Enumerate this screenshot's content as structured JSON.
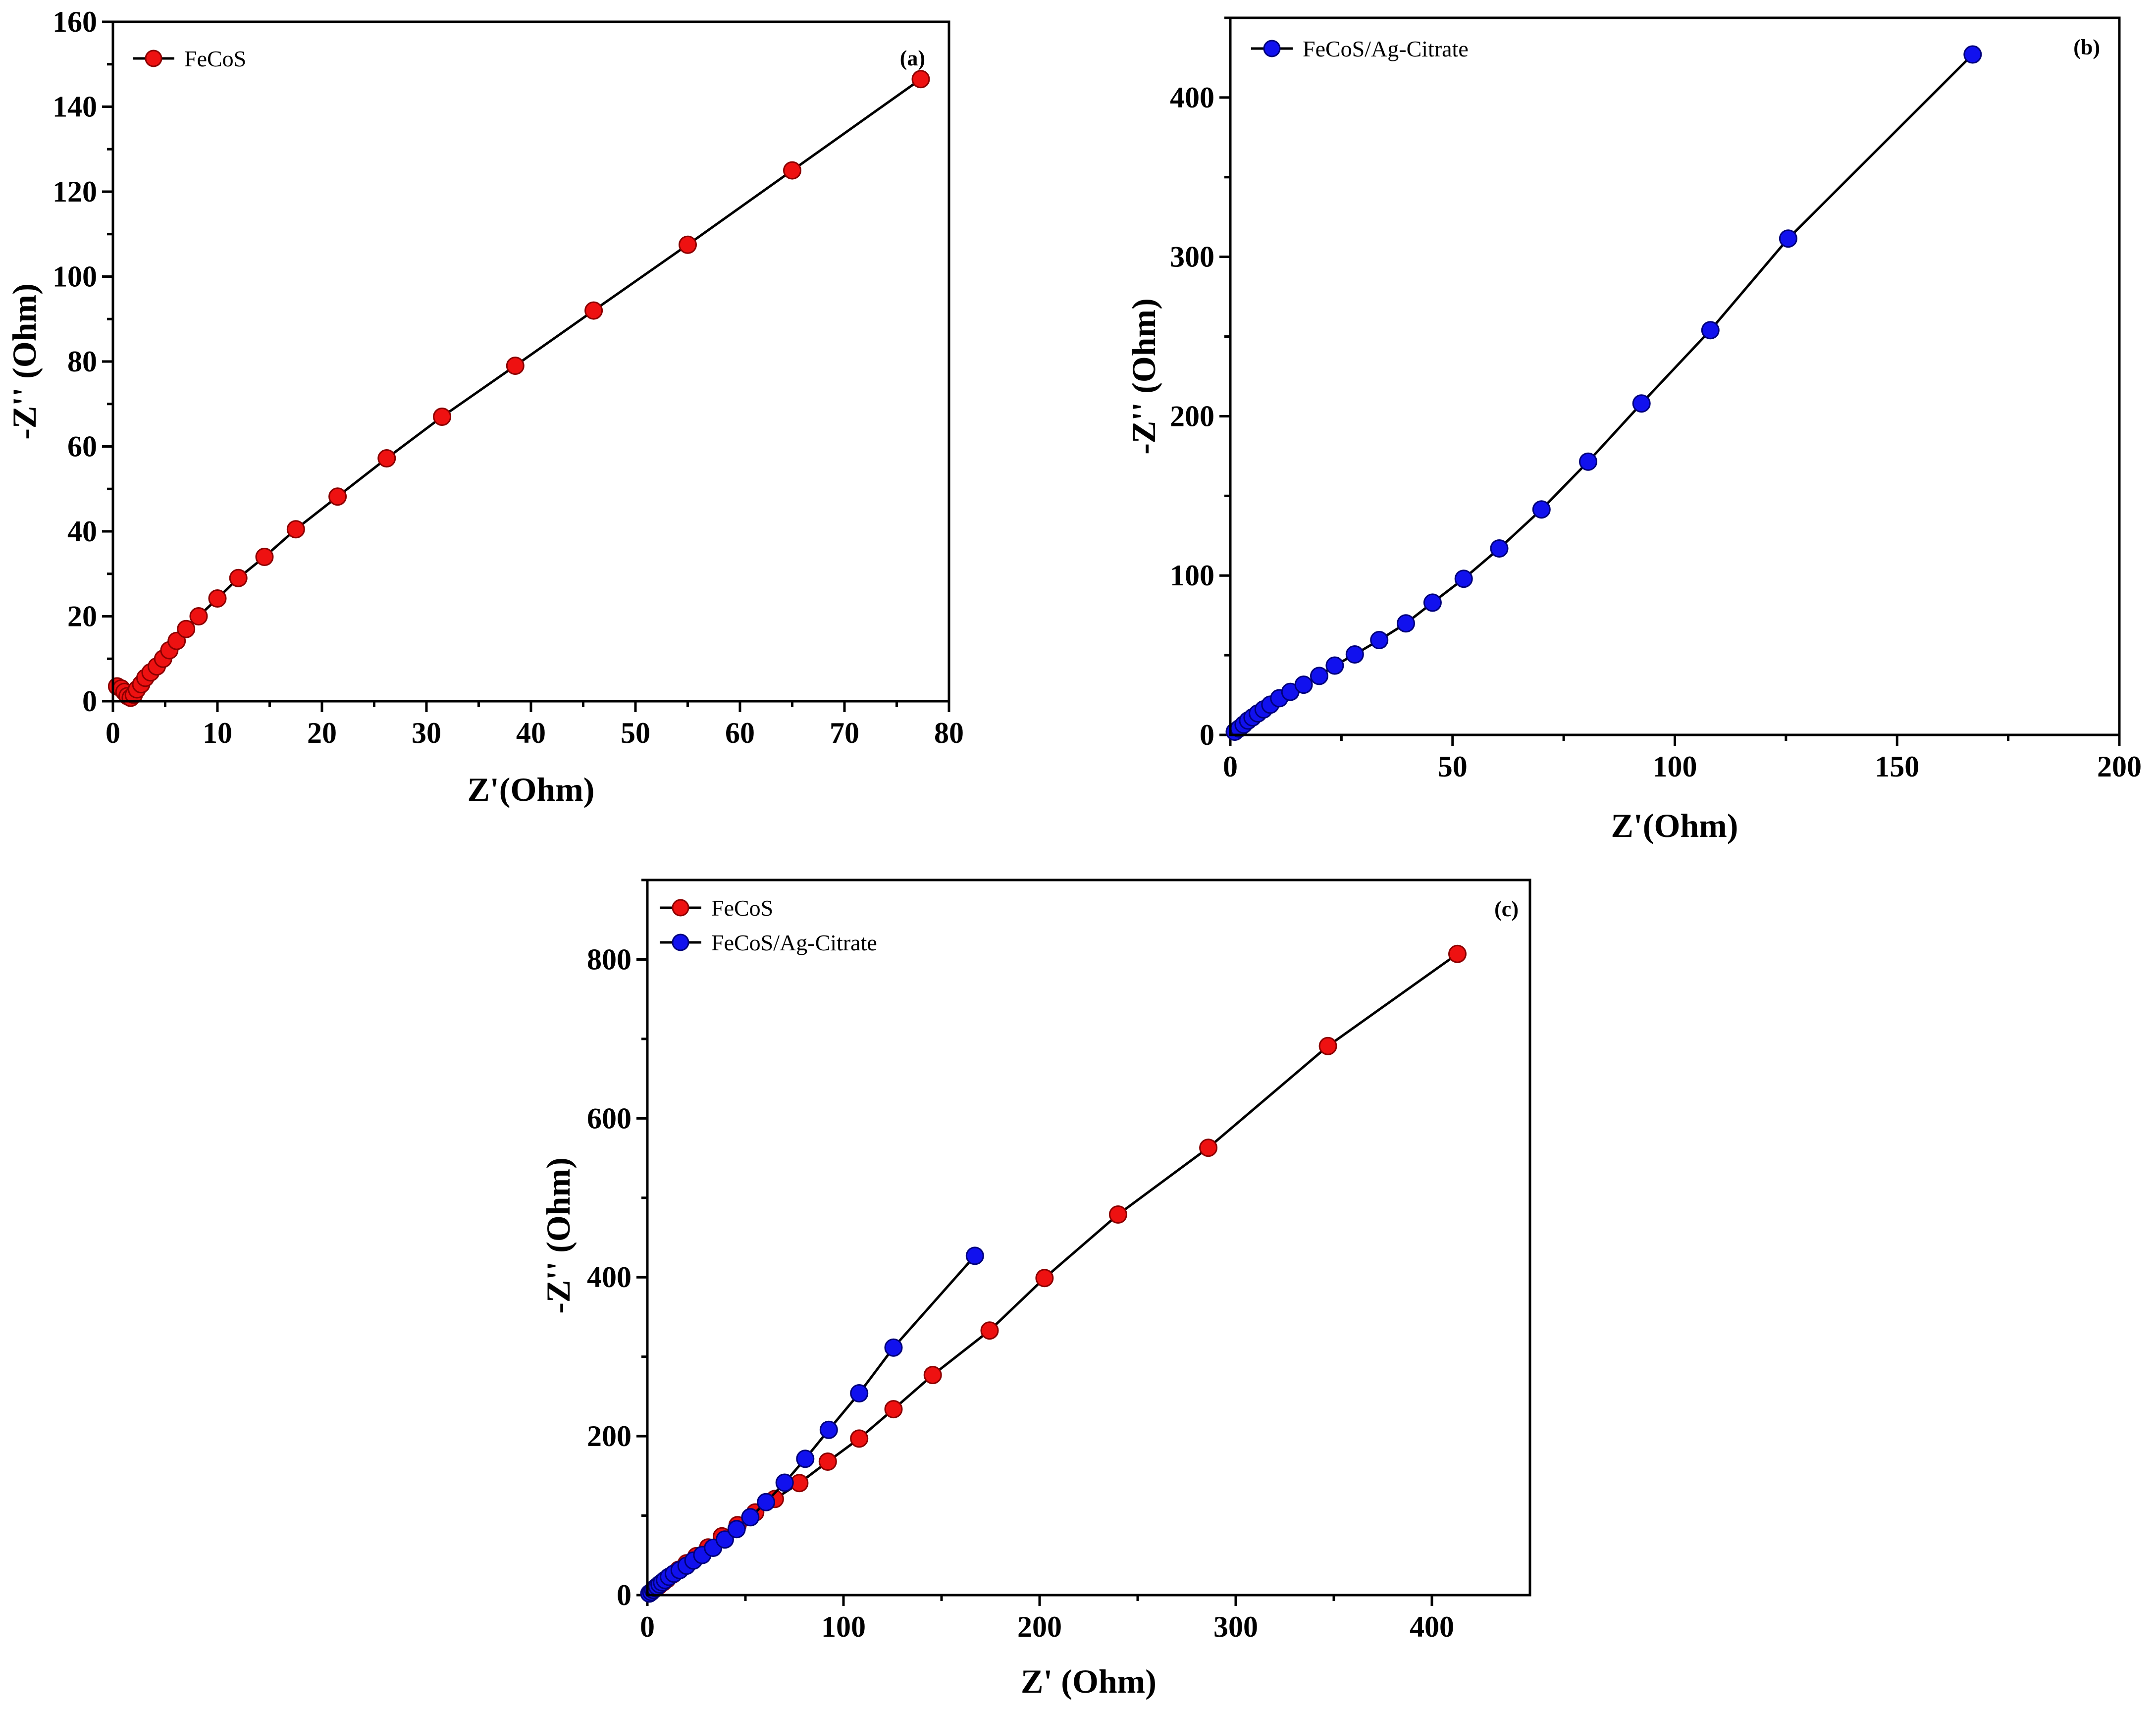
{
  "chart_data": [
    {
      "type": "line",
      "panel": "(a)",
      "xlabel": "Z'(Ohm)",
      "ylabel": "-Z'' (Ohm)",
      "xlim": [
        0,
        80
      ],
      "ylim": [
        0,
        160
      ],
      "xticks": [
        0,
        10,
        20,
        30,
        40,
        50,
        60,
        70,
        80
      ],
      "yticks": [
        0,
        20,
        40,
        60,
        80,
        100,
        120,
        140,
        160
      ],
      "legend_position": "top-left",
      "series": [
        {
          "name": "FeCoS",
          "color": "#ee1111",
          "x": [
            0.4,
            0.8,
            1.1,
            1.4,
            1.7,
            2.0,
            2.3,
            2.7,
            3.1,
            3.6,
            4.2,
            4.8,
            5.4,
            6.1,
            7.0,
            8.2,
            10.0,
            12.0,
            14.5,
            17.5,
            21.5,
            26.2,
            31.5,
            38.5,
            46.0,
            55.0,
            65.0,
            77.3
          ],
          "y": [
            3.5,
            3.0,
            2.2,
            1.2,
            0.8,
            1.5,
            2.8,
            4.0,
            5.5,
            6.8,
            8.2,
            10.0,
            12.0,
            14.2,
            17.0,
            20.0,
            24.2,
            29.0,
            34.0,
            40.5,
            48.2,
            57.2,
            67.0,
            79.0,
            92.0,
            107.5,
            125.0,
            146.5
          ]
        }
      ]
    },
    {
      "type": "line",
      "panel": "(b)",
      "xlabel": "Z'(Ohm)",
      "ylabel": "-Z'' (Ohm)",
      "xlim": [
        0,
        200
      ],
      "ylim": [
        0,
        450
      ],
      "xticks": [
        0,
        50,
        100,
        150,
        200
      ],
      "yticks": [
        0,
        100,
        200,
        300,
        400
      ],
      "legend_position": "top-left",
      "series": [
        {
          "name": "FeCoS/Ag-Citrate",
          "color": "#1111ee",
          "x": [
            1.0,
            2.0,
            3.0,
            4.0,
            5.0,
            6.2,
            7.5,
            9.0,
            11.0,
            13.5,
            16.5,
            20.0,
            23.5,
            28.0,
            33.5,
            39.5,
            45.5,
            52.5,
            60.5,
            70.0,
            80.5,
            92.5,
            108.0,
            125.5,
            167.0
          ],
          "y": [
            2.0,
            4.0,
            6.5,
            9.0,
            11.0,
            13.5,
            16.0,
            19.0,
            23.0,
            27.0,
            31.5,
            37.0,
            43.5,
            50.5,
            59.5,
            70.0,
            83.0,
            98.0,
            117.0,
            141.5,
            171.5,
            208.0,
            254.0,
            311.5,
            427.0
          ]
        }
      ]
    },
    {
      "type": "line",
      "panel": "(c)",
      "xlabel": "Z' (Ohm)",
      "ylabel": "-Z'' (Ohm)",
      "xlim": [
        0,
        450
      ],
      "ylim": [
        0,
        900
      ],
      "xticks": [
        0,
        100,
        200,
        300,
        400
      ],
      "yticks": [
        0,
        200,
        400,
        600,
        800
      ],
      "legend_position": "top-left",
      "series": [
        {
          "name": "FeCoS",
          "color": "#ee1111",
          "x": [
            2,
            4,
            6,
            8,
            10,
            13,
            16,
            20,
            25,
            31,
            38,
            46,
            55,
            65,
            77.5,
            92,
            108,
            125.5,
            145.5,
            174.5,
            202.5,
            240,
            286,
            347,
            413
          ],
          "y": [
            4,
            8,
            12,
            16,
            20,
            26,
            32,
            40,
            49,
            60,
            74,
            88,
            104,
            121,
            141,
            168,
            197,
            234,
            277,
            333,
            399,
            479,
            563,
            691,
            807
          ]
        },
        {
          "name": "FeCoS/Ag-Citrate",
          "color": "#1111ee",
          "x": [
            1.0,
            2.0,
            3.0,
            4.0,
            5.0,
            6.2,
            7.5,
            9.0,
            11.0,
            13.5,
            16.5,
            20.0,
            23.5,
            28.0,
            33.5,
            39.5,
            45.5,
            52.5,
            60.5,
            70.0,
            80.5,
            92.5,
            108.0,
            125.5,
            167.0
          ],
          "y": [
            2.0,
            4.0,
            6.5,
            9.0,
            11.0,
            13.5,
            16.0,
            19.0,
            23.0,
            27.0,
            31.5,
            37.0,
            43.5,
            50.5,
            59.5,
            70.0,
            83.0,
            98.0,
            117.0,
            141.5,
            171.5,
            208.0,
            254.0,
            311.5,
            427.0
          ]
        }
      ]
    }
  ]
}
